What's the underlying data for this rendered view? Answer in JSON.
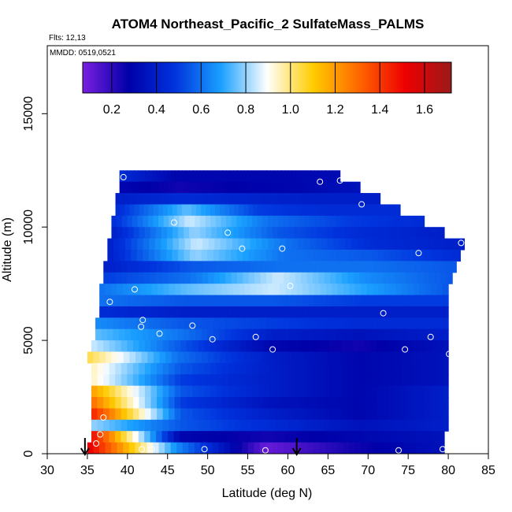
{
  "title": "ATOM4 Northeast_Pacific_2 SulfateMass_PALMS",
  "flights_label": "Flts: 12,13",
  "mmdd_label": "MMDD: 0519,0521",
  "chart_data": {
    "type": "heatmap",
    "xlabel": "Latitude (deg N)",
    "ylabel": "Altitude (m)",
    "xlim": [
      30,
      85
    ],
    "ylim": [
      0,
      18000
    ],
    "x_ticks": [
      30,
      35,
      40,
      45,
      50,
      55,
      60,
      65,
      70,
      75,
      80,
      85
    ],
    "y_ticks": [
      0,
      5000,
      10000,
      15000
    ],
    "colorbar": {
      "range": [
        0.07,
        1.72
      ],
      "ticks": [
        0.2,
        0.4,
        0.6,
        0.8,
        1.0,
        1.2,
        1.4,
        1.6
      ],
      "tick_labels": [
        "0.2",
        "0.4",
        "0.6",
        "0.8",
        "1.0",
        "1.2",
        "1.4",
        "1.6"
      ],
      "stops": [
        "#7a1fe0",
        "#0000a8",
        "#0033dd",
        "#1aa0ff",
        "#ffffff",
        "#ffcc00",
        "#ff6600",
        "#ee0000",
        "#9a1a1a"
      ]
    },
    "bands": [
      {
        "alt": [
          12000,
          12500
        ],
        "lat": [
          39.0,
          66.5
        ],
        "v": [
          0.45,
          0.3,
          0.3,
          0.3,
          0.32
        ]
      },
      {
        "alt": [
          11500,
          12000
        ],
        "lat": [
          39.0,
          69.0
        ],
        "v": [
          0.3,
          0.25,
          0.28,
          0.3,
          0.35
        ]
      },
      {
        "alt": [
          11000,
          11500
        ],
        "lat": [
          38.5,
          71.5
        ],
        "v": [
          0.4,
          0.45,
          0.42,
          0.4,
          0.4
        ]
      },
      {
        "alt": [
          10500,
          11000
        ],
        "lat": [
          38.5,
          74.0
        ],
        "v": [
          0.45,
          0.75,
          0.5,
          0.45,
          0.45
        ]
      },
      {
        "alt": [
          10000,
          10500
        ],
        "lat": [
          38.0,
          77.0
        ],
        "v": [
          0.45,
          0.85,
          0.6,
          0.5,
          0.45
        ]
      },
      {
        "alt": [
          9500,
          10000
        ],
        "lat": [
          38.0,
          79.5
        ],
        "v": [
          0.4,
          0.8,
          0.55,
          0.45,
          0.4
        ]
      },
      {
        "alt": [
          9000,
          9500
        ],
        "lat": [
          37.5,
          82.0
        ],
        "v": [
          0.4,
          0.85,
          0.6,
          0.45,
          0.4
        ]
      },
      {
        "alt": [
          8500,
          9000
        ],
        "lat": [
          37.5,
          81.5
        ],
        "v": [
          0.4,
          0.8,
          0.6,
          0.55,
          0.45
        ]
      },
      {
        "alt": [
          8000,
          8500
        ],
        "lat": [
          37.0,
          81.0
        ],
        "v": [
          0.4,
          0.55,
          0.6,
          0.6,
          0.55
        ]
      },
      {
        "alt": [
          7500,
          8000
        ],
        "lat": [
          37.0,
          80.5
        ],
        "v": [
          0.5,
          0.6,
          0.85,
          0.65,
          0.55
        ]
      },
      {
        "alt": [
          7000,
          7500
        ],
        "lat": [
          36.5,
          80.0
        ],
        "v": [
          0.6,
          0.75,
          0.85,
          0.7,
          0.55
        ]
      },
      {
        "alt": [
          6500,
          7000
        ],
        "lat": [
          36.5,
          80.0
        ],
        "v": [
          0.6,
          0.55,
          0.55,
          0.5,
          0.5
        ]
      },
      {
        "alt": [
          6000,
          6500
        ],
        "lat": [
          36.5,
          80.0
        ],
        "v": [
          0.45,
          0.4,
          0.4,
          0.4,
          0.4
        ]
      },
      {
        "alt": [
          5500,
          6000
        ],
        "lat": [
          36.0,
          80.0
        ],
        "v": [
          0.65,
          0.55,
          0.5,
          0.45,
          0.45
        ]
      },
      {
        "alt": [
          5000,
          5500
        ],
        "lat": [
          36.0,
          80.0
        ],
        "v": [
          0.75,
          0.6,
          0.4,
          0.35,
          0.4
        ]
      },
      {
        "alt": [
          4500,
          5000
        ],
        "lat": [
          35.5,
          80.0
        ],
        "v": [
          0.85,
          0.55,
          0.3,
          0.25,
          0.35
        ]
      },
      {
        "alt": [
          4000,
          4500
        ],
        "lat": [
          35.0,
          80.0
        ],
        "v": [
          1.05,
          0.6,
          0.4,
          0.3,
          0.35
        ]
      },
      {
        "alt": [
          3500,
          4000
        ],
        "lat": [
          35.5,
          80.0
        ],
        "v": [
          0.95,
          0.55,
          0.4,
          0.3,
          0.35
        ]
      },
      {
        "alt": [
          3000,
          3500
        ],
        "lat": [
          35.5,
          80.0
        ],
        "v": [
          0.95,
          0.5,
          0.4,
          0.3,
          0.35
        ]
      },
      {
        "alt": [
          2500,
          3000
        ],
        "lat": [
          35.5,
          80.0
        ],
        "v": [
          1.2,
          0.55,
          0.4,
          0.3,
          0.4
        ]
      },
      {
        "alt": [
          2000,
          2500
        ],
        "lat": [
          35.5,
          80.0
        ],
        "v": [
          1.3,
          0.5,
          0.35,
          0.3,
          0.4
        ]
      },
      {
        "alt": [
          1500,
          2000
        ],
        "lat": [
          35.5,
          80.0
        ],
        "v": [
          1.45,
          0.55,
          0.4,
          0.3,
          0.4
        ]
      },
      {
        "alt": [
          1000,
          1500
        ],
        "lat": [
          35.5,
          80.0
        ],
        "v": [
          0.8,
          0.55,
          0.45,
          0.35,
          0.4
        ]
      },
      {
        "alt": [
          500,
          1000
        ],
        "lat": [
          35.5,
          79.5
        ],
        "v": [
          1.5,
          0.3,
          0.25,
          0.3,
          0.35
        ]
      },
      {
        "alt": [
          0,
          500
        ],
        "lat": [
          35.0,
          79.5
        ],
        "v": [
          1.55,
          0.65,
          0.1,
          0.25,
          0.35
        ]
      }
    ],
    "points": [
      {
        "x": 39.5,
        "y": 12200
      },
      {
        "x": 64.0,
        "y": 12000
      },
      {
        "x": 66.5,
        "y": 12050
      },
      {
        "x": 69.2,
        "y": 11000
      },
      {
        "x": 45.8,
        "y": 10200
      },
      {
        "x": 52.5,
        "y": 9750
      },
      {
        "x": 54.3,
        "y": 9050
      },
      {
        "x": 59.3,
        "y": 9050
      },
      {
        "x": 76.3,
        "y": 8850
      },
      {
        "x": 81.6,
        "y": 9300
      },
      {
        "x": 40.9,
        "y": 7250
      },
      {
        "x": 60.3,
        "y": 7400
      },
      {
        "x": 37.8,
        "y": 6700
      },
      {
        "x": 71.9,
        "y": 6200
      },
      {
        "x": 41.9,
        "y": 5900
      },
      {
        "x": 41.7,
        "y": 5600
      },
      {
        "x": 48.1,
        "y": 5650
      },
      {
        "x": 44.0,
        "y": 5300
      },
      {
        "x": 50.6,
        "y": 5050
      },
      {
        "x": 56.0,
        "y": 5150
      },
      {
        "x": 58.1,
        "y": 4600
      },
      {
        "x": 74.6,
        "y": 4600
      },
      {
        "x": 77.8,
        "y": 5150
      },
      {
        "x": 80.1,
        "y": 4400
      },
      {
        "x": 37.0,
        "y": 1600
      },
      {
        "x": 36.6,
        "y": 850
      },
      {
        "x": 36.1,
        "y": 450
      },
      {
        "x": 41.8,
        "y": 200
      },
      {
        "x": 43.0,
        "y": 200
      },
      {
        "x": 49.6,
        "y": 200
      },
      {
        "x": 57.2,
        "y": 150
      },
      {
        "x": 73.8,
        "y": 150
      },
      {
        "x": 79.3,
        "y": 200
      }
    ],
    "arrows": [
      34.7,
      61.1
    ]
  }
}
